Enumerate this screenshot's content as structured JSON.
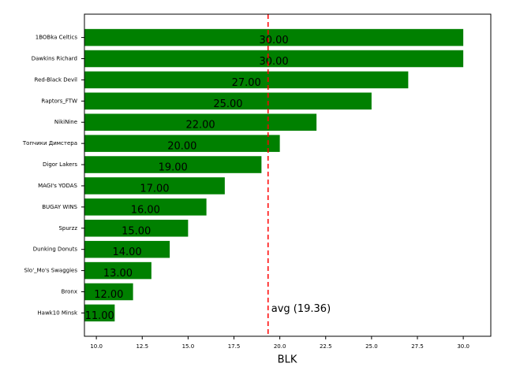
{
  "chart_data": {
    "type": "barh",
    "categories": [
      "1BOBka Celtics",
      "Dawkins Richard",
      "Red-Black Devil",
      "Raptors_FTW",
      "NikiNine",
      "Топчики Димстера",
      "Digor Lakers",
      "MAGI's YODAS",
      "BUGAY WINS",
      "Spurzz",
      "Dunking Donuts",
      "Slo'_Mo's Swaggies",
      "Bronx",
      "Hawk10 Minsk"
    ],
    "values": [
      30,
      30,
      27,
      25,
      22,
      20,
      19,
      17,
      16,
      15,
      14,
      13,
      12,
      11
    ],
    "value_labels": [
      "30.00",
      "30.00",
      "27.00",
      "25.00",
      "22.00",
      "20.00",
      "19.00",
      "17.00",
      "16.00",
      "15.00",
      "14.00",
      "13.00",
      "12.00",
      "11.00"
    ],
    "color": "#008000",
    "xlabel": "BLK",
    "xlim": [
      9.35,
      31.5
    ],
    "xticks": [
      {
        "value": 10,
        "label": "10.0"
      },
      {
        "value": 12.5,
        "label": "12.5"
      },
      {
        "value": 15,
        "label": "15.0"
      },
      {
        "value": 17.5,
        "label": "17.5"
      },
      {
        "value": 20,
        "label": "20.0"
      },
      {
        "value": 22.5,
        "label": "22.5"
      },
      {
        "value": 25,
        "label": "25.0"
      },
      {
        "value": 27.5,
        "label": "27.5"
      },
      {
        "value": 30,
        "label": "30.0"
      }
    ],
    "avg_line": {
      "value": 19.36,
      "label": "avg (19.36)",
      "color": "#ff0000"
    }
  }
}
